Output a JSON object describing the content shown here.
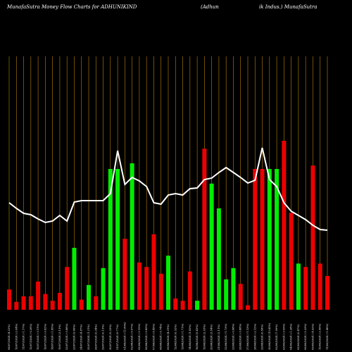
{
  "chart_data": {
    "type": "bar",
    "title": "MunafaSutra  Money Flow  Charts for ADHUNIKIND",
    "subtitle_left": "(Adhun",
    "subtitle_right": "ik Indus.) MunafaSutra",
    "categories": [
      "08/07/2024",
      "10/07/2024",
      "11/07/2024",
      "12/07/2024",
      "15/07/2024",
      "16/07/2024",
      "18/07/2024",
      "19/07/2024",
      "22/07/2024",
      "23/07/2024",
      "24/07/2024",
      "25/07/2024",
      "26/07/2024",
      "29/07/2024",
      "30/07/2024",
      "31/07/2024",
      "01/08/2024",
      "02/08/2024",
      "05/08/2024",
      "06/08/2024",
      "07/08/2024",
      "08/08/2024",
      "09/08/2024",
      "12/08/2024",
      "13/08/2024",
      "14/08/2024",
      "16/08/2024",
      "19/08/2024",
      "20/08/2024",
      "21/08/2024",
      "22/08/2024",
      "23/08/2024",
      "26/08/2024",
      "27/08/2024",
      "28/08/2024",
      "29/08/2024",
      "30/08/2024",
      "02/09/2024",
      "03/09/2024",
      "04/09/2024",
      "05/09/2024",
      "06/09/2024",
      "09/09/2024",
      "10/09/2024",
      "11/09/2024"
    ],
    "tick_labels": [
      "08/07/2024 (4.22%)",
      "10/07/2024 (-2.04%)",
      "11/07/2024 (-1.17%)",
      "12/07/2024 (-0.26%)",
      "15/07/2024 (-3.11%)",
      "16/07/2024 (-0.62%)",
      "18/07/2024 (-1.85%)",
      "19/07/2024 (3.13%)",
      "22/07/2024 (-3.88%)",
      "23/07/2024 (9.66%)",
      "24/07/2024 (4.87%)",
      "25/07/2024 (1.21%)",
      "26/07/2024 (0.34%)",
      "29/07/2024 (0.13%)",
      "30/07/2024 (5.33%)",
      "31/07/2024 (9.77%)",
      "01/08/2024 (-11.86%)",
      "02/08/2024 (-5.57%)",
      "05/08/2024 (-2.19%)",
      "06/08/2024 (-0.89%)",
      "07/08/2024 (-6.49%)",
      "08/08/2024 (-0.74%)",
      "09/08/2024 (4.31%)",
      "12/08/2024 (0.32%)",
      "13/08/2024 (-1.71%)",
      "14/08/2024 (1.82%)",
      "16/08/2024 (5.43%)",
      "19/08/2024 (2.03%)",
      "20/08/2024 (3.54%)",
      "21/08/2024 (2.11%)",
      "22/08/2024 (-1.73%)",
      "23/08/2024 (-0.68%)",
      "26/08/2024 (-3.88%)",
      "27/08/2024 (-1.13%)",
      "28/08/2024 (-2.12%)",
      "29/08/2024 (0.58%)",
      "30/08/2024 (13.85%)",
      "02/09/2024 (7.09%)",
      "03/09/2024 (-3.09%)",
      "04/09/2024 (-1.28%)",
      "05/09/2024 (0.47%)",
      "06/09/2024 (-2.33%)",
      "09/09/2024 (-4.92%)",
      "10/09/2024 (-2.56%)",
      "11/09/2024 (-1.46%)"
    ],
    "bar_colors": [
      "red",
      "red",
      "red",
      "red",
      "red",
      "red",
      "red",
      "red",
      "red",
      "green",
      "red",
      "green",
      "red",
      "green",
      "green",
      "green",
      "red",
      "green",
      "red",
      "red",
      "red",
      "red",
      "green",
      "red",
      "red",
      "red",
      "green",
      "red",
      "green",
      "green",
      "green",
      "green",
      "red",
      "red",
      "red",
      "red",
      "green",
      "green",
      "red",
      "red",
      "green",
      "red",
      "red",
      "red",
      "red"
    ],
    "bar_values": [
      18,
      7,
      12,
      12,
      25,
      14,
      8,
      15,
      38,
      55,
      9,
      22,
      12,
      37,
      125,
      125,
      63,
      130,
      42,
      38,
      67,
      32,
      48,
      10,
      8,
      34,
      8,
      143,
      112,
      90,
      27,
      37,
      23,
      4,
      125,
      125,
      125,
      125,
      150,
      86,
      41,
      38,
      128,
      41,
      30
    ],
    "line_values": [
      152,
      144,
      137,
      135,
      129,
      124,
      126,
      134,
      126,
      153,
      155,
      155,
      155,
      155,
      165,
      226,
      178,
      188,
      183,
      175,
      152,
      150,
      163,
      165,
      163,
      172,
      173,
      185,
      187,
      195,
      202,
      195,
      188,
      180,
      184,
      230,
      185,
      175,
      152,
      140,
      134,
      128,
      120,
      114,
      113
    ],
    "colors": {
      "background": "#000000",
      "positive": "#00ee00",
      "negative": "#ee0000",
      "line": "#ffffff",
      "grid": "#b8860b"
    },
    "grid": true,
    "legend": "none"
  }
}
